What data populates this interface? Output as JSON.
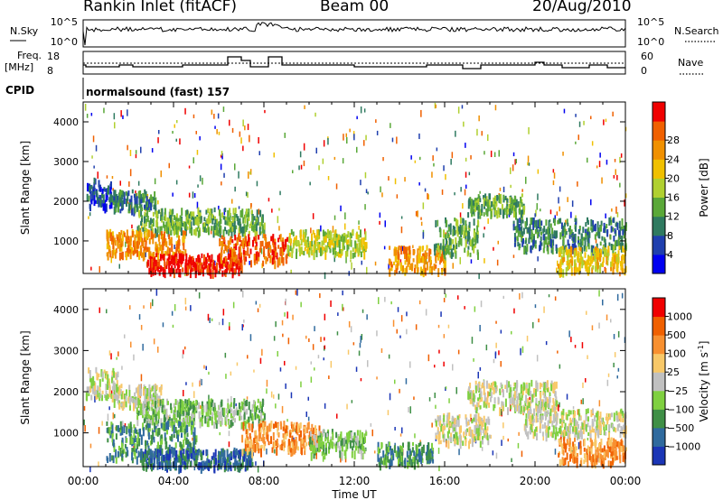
{
  "header": {
    "station": "Rankin Inlet (fitACF)",
    "beam": "Beam 00",
    "date": "20/Aug/2010"
  },
  "strip": {
    "nsky_label": "N.Sky",
    "nsky_ticks": [
      "10^5",
      "10^0"
    ],
    "nsearch_label": "N.Search",
    "nsearch_ticks": [
      "10^5",
      "10^0"
    ],
    "freq_label": "Freq.",
    "freq_unit": "[MHz]",
    "freq_ticks": [
      "18",
      "8"
    ],
    "nave_label": "Nave",
    "nave_ticks": [
      "60",
      "0"
    ],
    "cpid_label": "CPID",
    "cpid_value": "normalsound (fast) 157"
  },
  "chart_data": [
    {
      "type": "heatmap",
      "panel": "power",
      "ylabel": "Slant Range [km]",
      "xlabel": "Time UT",
      "x_ticks": [
        "00:00",
        "04:00",
        "08:00",
        "12:00",
        "16:00",
        "20:00",
        "00:00"
      ],
      "x_range_hours": [
        0,
        24
      ],
      "ylim": [
        180,
        4500
      ],
      "y_ticks": [
        1000,
        2000,
        3000,
        4000
      ],
      "colorbar": {
        "label": "Power [dB]",
        "ticks": [
          "4",
          "8",
          "12",
          "16",
          "20",
          "24",
          "28"
        ],
        "colors": [
          "#0000f0",
          "#1f3fae",
          "#2f7a60",
          "#5aa838",
          "#b0d030",
          "#f0c000",
          "#f09000",
          "#f06000",
          "#f00000"
        ]
      },
      "regions": [
        {
          "x": [
            0.1,
            1.3
          ],
          "y": [
            1900,
            2600
          ],
          "level": 1
        },
        {
          "x": [
            1.3,
            3.2
          ],
          "y": [
            1800,
            2300
          ],
          "level": 2
        },
        {
          "x": [
            2.3,
            8.0
          ],
          "y": [
            1250,
            1850
          ],
          "level": 3
        },
        {
          "x": [
            1.0,
            4.5
          ],
          "y": [
            700,
            1300
          ],
          "level": 6
        },
        {
          "x": [
            2.8,
            7.0
          ],
          "y": [
            250,
            700
          ],
          "level": 8
        },
        {
          "x": [
            6.0,
            9.0
          ],
          "y": [
            500,
            1200
          ],
          "level": 7
        },
        {
          "x": [
            9.0,
            12.5
          ],
          "y": [
            700,
            1300
          ],
          "level": 4
        },
        {
          "x": [
            13.5,
            16.0
          ],
          "y": [
            280,
            900
          ],
          "level": 6
        },
        {
          "x": [
            15.5,
            17.5
          ],
          "y": [
            700,
            1600
          ],
          "level": 3
        },
        {
          "x": [
            17.0,
            19.5
          ],
          "y": [
            1700,
            2200
          ],
          "level": 3
        },
        {
          "x": [
            19.0,
            24.0
          ],
          "y": [
            800,
            1600
          ],
          "level": 2
        },
        {
          "x": [
            21.0,
            24.0
          ],
          "y": [
            280,
            900
          ],
          "level": 5
        }
      ]
    },
    {
      "type": "heatmap",
      "panel": "velocity",
      "ylabel": "Slant Range [km]",
      "xlabel": "Time UT",
      "x_ticks": [
        "00:00",
        "04:00",
        "08:00",
        "12:00",
        "16:00",
        "20:00",
        "00:00"
      ],
      "x_range_hours": [
        0,
        24
      ],
      "ylim": [
        180,
        4500
      ],
      "y_ticks": [
        1000,
        2000,
        3000,
        4000
      ],
      "colorbar": {
        "label": "Velocity [m s",
        "label_sup": "-1",
        "label_close": "]",
        "ticks": [
          "1000",
          "500",
          "100",
          "25",
          "−25",
          "−100",
          "−500",
          "−1000"
        ],
        "colors": [
          "#1b36b6",
          "#2f6a9e",
          "#3f8f46",
          "#7fd040",
          "#c0c0c0",
          "#f8c868",
          "#f89030",
          "#f06000",
          "#f00000"
        ]
      },
      "regions": [
        {
          "x": [
            0.1,
            1.5
          ],
          "y": [
            1900,
            2600
          ],
          "level": 4
        },
        {
          "x": [
            1.3,
            3.5
          ],
          "y": [
            1700,
            2200
          ],
          "level": 4
        },
        {
          "x": [
            2.3,
            8.0
          ],
          "y": [
            1250,
            1850
          ],
          "level": 3
        },
        {
          "x": [
            1.0,
            5.0
          ],
          "y": [
            400,
            1300
          ],
          "level": 2
        },
        {
          "x": [
            2.5,
            7.5
          ],
          "y": [
            200,
            650
          ],
          "level": 1
        },
        {
          "x": [
            7.0,
            10.5
          ],
          "y": [
            600,
            1300
          ],
          "level": 6
        },
        {
          "x": [
            10.0,
            12.5
          ],
          "y": [
            500,
            1100
          ],
          "level": 3
        },
        {
          "x": [
            13.0,
            15.5
          ],
          "y": [
            280,
            800
          ],
          "level": 2
        },
        {
          "x": [
            15.5,
            18.0
          ],
          "y": [
            800,
            1500
          ],
          "level": 4
        },
        {
          "x": [
            17.0,
            21.0
          ],
          "y": [
            1600,
            2300
          ],
          "level": 4
        },
        {
          "x": [
            19.5,
            24.0
          ],
          "y": [
            1000,
            1600
          ],
          "level": 4
        },
        {
          "x": [
            21.0,
            24.0
          ],
          "y": [
            300,
            900
          ],
          "level": 6
        }
      ]
    }
  ]
}
